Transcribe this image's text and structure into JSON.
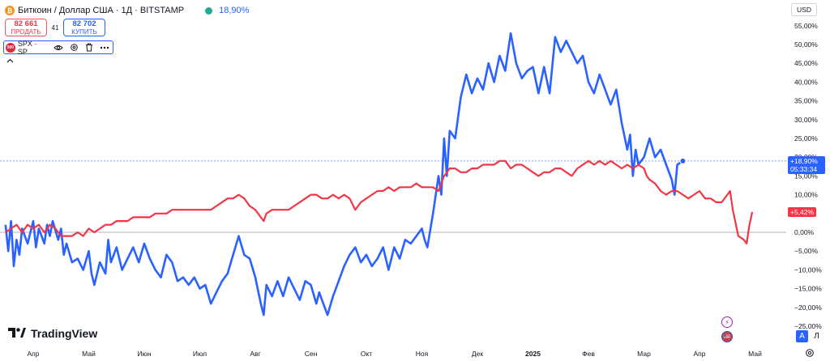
{
  "header": {
    "btc_icon": "bitcoin-icon",
    "symbol_title": "Биткоин / Доллар США · 1Д · BITSTAMP",
    "change": "18,90%"
  },
  "trade": {
    "sell_price": "82 661",
    "sell_label": "ПРОДАТЬ",
    "spread": "41",
    "buy_price": "82 702",
    "buy_label": "КУПИТЬ"
  },
  "compare": {
    "icon_text": "500",
    "label": "SPX · SP"
  },
  "toolbar": {
    "currency": "USD",
    "logo_text": "TradingView",
    "scale_auto": "A",
    "scale_log": "Л"
  },
  "events": {
    "flash": "⚡",
    "flag": "🇺🇸"
  },
  "colors": {
    "btc": "#2962ff",
    "spx": "#f23645",
    "zero_line": "#b2b5be",
    "price_line": "#2962ff"
  },
  "chart_data": {
    "type": "line",
    "y_axis_unit": "%",
    "ylim": [
      -25,
      58
    ],
    "yticks": [
      {
        "value": 55,
        "label": "55,00%"
      },
      {
        "value": 50,
        "label": "50,00%"
      },
      {
        "value": 45,
        "label": "45,00%"
      },
      {
        "value": 40,
        "label": "40,00%"
      },
      {
        "value": 35,
        "label": "35,00%"
      },
      {
        "value": 30,
        "label": "30,00%"
      },
      {
        "value": 25,
        "label": "25,00%"
      },
      {
        "value": 20,
        "label": "20,00%"
      },
      {
        "value": 15,
        "label": "15,00%"
      },
      {
        "value": 10,
        "label": "10,00%"
      },
      {
        "value": 5,
        "label": "5,00%"
      },
      {
        "value": 0,
        "label": "0,00%"
      },
      {
        "value": -5,
        "label": "−5,00%"
      },
      {
        "value": -10,
        "label": "−10,00%"
      },
      {
        "value": -15,
        "label": "−15,00%"
      },
      {
        "value": -20,
        "label": "−20,00%"
      },
      {
        "value": -25,
        "label": "−25,00%"
      }
    ],
    "xticks": [
      {
        "t": 0,
        "label": "Апр",
        "bold": false
      },
      {
        "t": 1,
        "label": "Май",
        "bold": false
      },
      {
        "t": 2,
        "label": "Июн",
        "bold": false
      },
      {
        "t": 3,
        "label": "Июл",
        "bold": false
      },
      {
        "t": 4,
        "label": "Авг",
        "bold": false
      },
      {
        "t": 5,
        "label": "Сен",
        "bold": false
      },
      {
        "t": 6,
        "label": "Окт",
        "bold": false
      },
      {
        "t": 7,
        "label": "Ноя",
        "bold": false
      },
      {
        "t": 8,
        "label": "Дек",
        "bold": false
      },
      {
        "t": 9,
        "label": "2025",
        "bold": true
      },
      {
        "t": 10,
        "label": "Фев",
        "bold": false
      },
      {
        "t": 11,
        "label": "Мар",
        "bold": false
      },
      {
        "t": 12,
        "label": "Апр",
        "bold": false
      },
      {
        "t": 13,
        "label": "Май",
        "bold": false
      }
    ],
    "series": [
      {
        "name": "Биткоин / Доллар США",
        "color": "#2962ff",
        "last_label": "+18,90%",
        "countdown": "05:33:34",
        "points": [
          [
            -0.5,
            2
          ],
          [
            -0.45,
            -5
          ],
          [
            -0.4,
            3
          ],
          [
            -0.35,
            -9
          ],
          [
            -0.3,
            -2
          ],
          [
            -0.25,
            -6
          ],
          [
            -0.2,
            1
          ],
          [
            -0.1,
            -3
          ],
          [
            0,
            3
          ],
          [
            0.05,
            -4
          ],
          [
            0.1,
            1
          ],
          [
            0.2,
            -3
          ],
          [
            0.25,
            2
          ],
          [
            0.3,
            -1
          ],
          [
            0.35,
            3
          ],
          [
            0.45,
            -2
          ],
          [
            0.5,
            1
          ],
          [
            0.55,
            -6
          ],
          [
            0.6,
            -3
          ],
          [
            0.7,
            -8
          ],
          [
            0.8,
            -7
          ],
          [
            0.9,
            -10
          ],
          [
            1.0,
            -5
          ],
          [
            1.05,
            -11
          ],
          [
            1.1,
            -14
          ],
          [
            1.2,
            -8
          ],
          [
            1.3,
            -11
          ],
          [
            1.35,
            -2
          ],
          [
            1.4,
            -8
          ],
          [
            1.5,
            -4
          ],
          [
            1.6,
            -10
          ],
          [
            1.7,
            -7
          ],
          [
            1.8,
            -4
          ],
          [
            1.9,
            -8
          ],
          [
            2.0,
            -3
          ],
          [
            2.1,
            -7
          ],
          [
            2.2,
            -10
          ],
          [
            2.3,
            -12
          ],
          [
            2.4,
            -6
          ],
          [
            2.5,
            -8
          ],
          [
            2.6,
            -13
          ],
          [
            2.7,
            -12
          ],
          [
            2.8,
            -14
          ],
          [
            2.9,
            -12
          ],
          [
            3.0,
            -15
          ],
          [
            3.1,
            -14
          ],
          [
            3.2,
            -19
          ],
          [
            3.3,
            -16
          ],
          [
            3.4,
            -13
          ],
          [
            3.5,
            -11
          ],
          [
            3.6,
            -6
          ],
          [
            3.7,
            -1
          ],
          [
            3.8,
            -6
          ],
          [
            3.9,
            -7
          ],
          [
            4.0,
            -12
          ],
          [
            4.1,
            -19
          ],
          [
            4.15,
            -22
          ],
          [
            4.2,
            -14
          ],
          [
            4.3,
            -17
          ],
          [
            4.4,
            -13
          ],
          [
            4.5,
            -17
          ],
          [
            4.6,
            -12
          ],
          [
            4.7,
            -15
          ],
          [
            4.8,
            -18
          ],
          [
            4.9,
            -13
          ],
          [
            5.0,
            -14
          ],
          [
            5.1,
            -19
          ],
          [
            5.15,
            -16
          ],
          [
            5.25,
            -20
          ],
          [
            5.3,
            -22
          ],
          [
            5.4,
            -17
          ],
          [
            5.5,
            -13
          ],
          [
            5.6,
            -9
          ],
          [
            5.7,
            -6
          ],
          [
            5.8,
            -4
          ],
          [
            5.9,
            -8
          ],
          [
            6.0,
            -6
          ],
          [
            6.1,
            -9
          ],
          [
            6.2,
            -7
          ],
          [
            6.3,
            -4
          ],
          [
            6.4,
            -10
          ],
          [
            6.5,
            -4
          ],
          [
            6.6,
            -7
          ],
          [
            6.7,
            -2
          ],
          [
            6.8,
            -3
          ],
          [
            6.9,
            -1
          ],
          [
            7.0,
            1
          ],
          [
            7.05,
            -2
          ],
          [
            7.1,
            -4
          ],
          [
            7.2,
            5
          ],
          [
            7.3,
            15
          ],
          [
            7.35,
            10
          ],
          [
            7.4,
            25
          ],
          [
            7.45,
            15
          ],
          [
            7.5,
            27
          ],
          [
            7.6,
            25
          ],
          [
            7.7,
            36
          ],
          [
            7.8,
            42
          ],
          [
            7.9,
            37
          ],
          [
            8.0,
            41
          ],
          [
            8.1,
            38
          ],
          [
            8.2,
            45
          ],
          [
            8.3,
            40
          ],
          [
            8.4,
            47
          ],
          [
            8.5,
            43
          ],
          [
            8.6,
            53
          ],
          [
            8.7,
            45
          ],
          [
            8.8,
            41
          ],
          [
            8.9,
            43
          ],
          [
            9.0,
            44
          ],
          [
            9.1,
            37
          ],
          [
            9.2,
            44
          ],
          [
            9.3,
            37
          ],
          [
            9.4,
            52
          ],
          [
            9.5,
            48
          ],
          [
            9.6,
            51
          ],
          [
            9.7,
            48
          ],
          [
            9.8,
            45
          ],
          [
            9.9,
            47
          ],
          [
            10.0,
            40
          ],
          [
            10.1,
            37
          ],
          [
            10.2,
            42
          ],
          [
            10.3,
            38
          ],
          [
            10.4,
            34
          ],
          [
            10.5,
            38
          ],
          [
            10.6,
            29
          ],
          [
            10.7,
            22
          ],
          [
            10.75,
            26
          ],
          [
            10.8,
            15
          ],
          [
            10.85,
            22
          ],
          [
            10.9,
            18
          ],
          [
            11.0,
            20
          ],
          [
            11.1,
            25
          ],
          [
            11.2,
            20
          ],
          [
            11.3,
            22
          ],
          [
            11.4,
            18
          ],
          [
            11.5,
            14
          ],
          [
            11.55,
            10
          ],
          [
            11.6,
            18
          ],
          [
            11.7,
            19
          ]
        ]
      },
      {
        "name": "SPX · SP",
        "color": "#f23645",
        "last_label": "+5,42%",
        "points": [
          [
            -0.5,
            0
          ],
          [
            -0.4,
            1
          ],
          [
            -0.3,
            2
          ],
          [
            -0.2,
            0
          ],
          [
            -0.1,
            2
          ],
          [
            0,
            1
          ],
          [
            0.1,
            2
          ],
          [
            0.2,
            0
          ],
          [
            0.3,
            2
          ],
          [
            0.4,
            1
          ],
          [
            0.5,
            -1
          ],
          [
            0.6,
            -1
          ],
          [
            0.7,
            -1
          ],
          [
            0.8,
            0
          ],
          [
            0.9,
            -1
          ],
          [
            1.0,
            1
          ],
          [
            1.1,
            0
          ],
          [
            1.2,
            1
          ],
          [
            1.3,
            2
          ],
          [
            1.4,
            2
          ],
          [
            1.5,
            3
          ],
          [
            1.6,
            3
          ],
          [
            1.7,
            3
          ],
          [
            1.8,
            4
          ],
          [
            1.9,
            4
          ],
          [
            2.0,
            4
          ],
          [
            2.1,
            4
          ],
          [
            2.2,
            5
          ],
          [
            2.3,
            5
          ],
          [
            2.4,
            5
          ],
          [
            2.5,
            6
          ],
          [
            2.6,
            6
          ],
          [
            2.7,
            6
          ],
          [
            2.8,
            6
          ],
          [
            2.9,
            6
          ],
          [
            3.0,
            6
          ],
          [
            3.1,
            6
          ],
          [
            3.2,
            6
          ],
          [
            3.3,
            7
          ],
          [
            3.4,
            8
          ],
          [
            3.5,
            9
          ],
          [
            3.6,
            9
          ],
          [
            3.7,
            10
          ],
          [
            3.8,
            9
          ],
          [
            3.9,
            7
          ],
          [
            4.0,
            6
          ],
          [
            4.1,
            4
          ],
          [
            4.15,
            3
          ],
          [
            4.2,
            5
          ],
          [
            4.3,
            6
          ],
          [
            4.4,
            6
          ],
          [
            4.5,
            6
          ],
          [
            4.6,
            6
          ],
          [
            4.7,
            7
          ],
          [
            4.8,
            8
          ],
          [
            4.9,
            9
          ],
          [
            5.0,
            10
          ],
          [
            5.1,
            10
          ],
          [
            5.2,
            9
          ],
          [
            5.3,
            9
          ],
          [
            5.4,
            10
          ],
          [
            5.5,
            9
          ],
          [
            5.6,
            10
          ],
          [
            5.7,
            9
          ],
          [
            5.8,
            6
          ],
          [
            5.9,
            8
          ],
          [
            6.0,
            9
          ],
          [
            6.1,
            10
          ],
          [
            6.2,
            11
          ],
          [
            6.3,
            11
          ],
          [
            6.4,
            12
          ],
          [
            6.5,
            11
          ],
          [
            6.6,
            12
          ],
          [
            6.7,
            12
          ],
          [
            6.8,
            12
          ],
          [
            6.9,
            13
          ],
          [
            7.0,
            12
          ],
          [
            7.1,
            12
          ],
          [
            7.2,
            12
          ],
          [
            7.3,
            11
          ],
          [
            7.4,
            15
          ],
          [
            7.5,
            17
          ],
          [
            7.6,
            17
          ],
          [
            7.7,
            16
          ],
          [
            7.8,
            16
          ],
          [
            7.9,
            17
          ],
          [
            8.0,
            17
          ],
          [
            8.1,
            18
          ],
          [
            8.2,
            18
          ],
          [
            8.3,
            18
          ],
          [
            8.4,
            19
          ],
          [
            8.5,
            19
          ],
          [
            8.6,
            17
          ],
          [
            8.7,
            18
          ],
          [
            8.8,
            18
          ],
          [
            8.9,
            17
          ],
          [
            9.0,
            16
          ],
          [
            9.1,
            15
          ],
          [
            9.2,
            16
          ],
          [
            9.3,
            16
          ],
          [
            9.4,
            17
          ],
          [
            9.5,
            17
          ],
          [
            9.6,
            16
          ],
          [
            9.7,
            15
          ],
          [
            9.8,
            17
          ],
          [
            9.9,
            18
          ],
          [
            10.0,
            19
          ],
          [
            10.1,
            18
          ],
          [
            10.2,
            19
          ],
          [
            10.3,
            18
          ],
          [
            10.4,
            19
          ],
          [
            10.5,
            18
          ],
          [
            10.6,
            17
          ],
          [
            10.7,
            18
          ],
          [
            10.8,
            17
          ],
          [
            10.9,
            18
          ],
          [
            11.0,
            17
          ],
          [
            11.05,
            15
          ],
          [
            11.1,
            14
          ],
          [
            11.2,
            13
          ],
          [
            11.3,
            11
          ],
          [
            11.4,
            10
          ],
          [
            11.5,
            11
          ],
          [
            11.6,
            11
          ],
          [
            11.7,
            10
          ],
          [
            11.8,
            9
          ],
          [
            11.9,
            10
          ],
          [
            12.0,
            11
          ],
          [
            12.1,
            9
          ],
          [
            12.2,
            9
          ],
          [
            12.3,
            8
          ],
          [
            12.4,
            8
          ],
          [
            12.5,
            10
          ],
          [
            12.55,
            11
          ],
          [
            12.6,
            6
          ],
          [
            12.7,
            -1
          ],
          [
            12.8,
            -2
          ],
          [
            12.85,
            -3
          ],
          [
            12.9,
            2
          ],
          [
            12.95,
            5.4
          ]
        ]
      }
    ]
  }
}
